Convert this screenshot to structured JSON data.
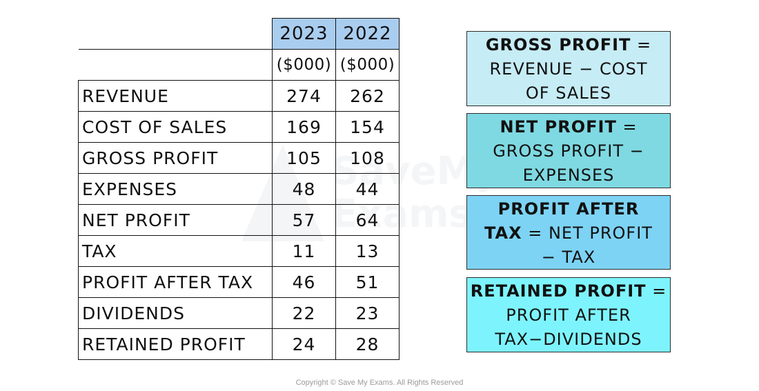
{
  "table": {
    "years": [
      "2023",
      "2022"
    ],
    "unit": "($000)",
    "rows": [
      {
        "label": "REVENUE",
        "v2023": "274",
        "v2022": "262"
      },
      {
        "label": "COST OF SALES",
        "v2023": "169",
        "v2022": "154"
      },
      {
        "label": "GROSS PROFIT",
        "v2023": "105",
        "v2022": "108"
      },
      {
        "label": "EXPENSES",
        "v2023": "48",
        "v2022": "44"
      },
      {
        "label": "NET PROFIT",
        "v2023": "57",
        "v2022": "64"
      },
      {
        "label": "TAX",
        "v2023": "11",
        "v2022": "13"
      },
      {
        "label": "PROFIT AFTER TAX",
        "v2023": "46",
        "v2022": "51"
      },
      {
        "label": "DIVIDENDS",
        "v2023": "22",
        "v2022": "23"
      },
      {
        "label": "RETAINED PROFIT",
        "v2023": "24",
        "v2022": "28"
      }
    ]
  },
  "formulas": [
    {
      "term": "GROSS PROFIT",
      "eq": " =",
      "line2": "REVENUE − COST",
      "line3": "OF SALES",
      "color": "#c6ecf5"
    },
    {
      "term": "NET PROFIT",
      "eq": " =",
      "line2": "GROSS PROFIT −",
      "line3": "EXPENSES",
      "color": "#7fd9e2"
    },
    {
      "term": "PROFIT AFTER",
      "eq": "",
      "term2": "TAX",
      "line2rest": " = NET PROFIT",
      "line3": "− TAX",
      "color": "#7dd3f4"
    },
    {
      "term": "RETAINED PROFIT",
      "eq": " =",
      "line2": "PROFIT AFTER",
      "line3": "TAX−DIVIDENDS",
      "color": "#7df4fd"
    }
  ],
  "watermark": "SaveMy Exams",
  "copyright": "Copyright © Save My Exams. All Rights Reserved"
}
